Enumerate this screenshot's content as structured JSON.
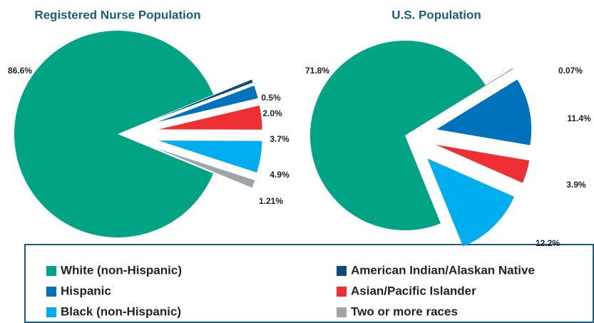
{
  "chart_data": [
    {
      "type": "pie",
      "title": "Registered Nurse Population",
      "categories": [
        "White (non-Hispanic)",
        "American Indian/Alaskan Native",
        "Hispanic",
        "Asian/Pacific Islander",
        "Black (non-Hispanic)",
        "Two or more races"
      ],
      "values": [
        86.6,
        0.5,
        2.0,
        3.7,
        4.9,
        1.21
      ],
      "value_labels": [
        "86.6%",
        "0.5%",
        "2.0%",
        "3.7%",
        "4.9%",
        "1.21%"
      ],
      "colors": [
        "#00a383",
        "#0e4d73",
        "#0072bc",
        "#ed2f34",
        "#00aeef",
        "#9ea4aa"
      ]
    },
    {
      "type": "pie",
      "title": "U.S. Population",
      "categories": [
        "White (non-Hispanic)",
        "American Indian/Alaskan Native",
        "Hispanic",
        "Asian/Pacific Islander",
        "Black (non-Hispanic)"
      ],
      "values": [
        71.8,
        0.07,
        11.4,
        3.9,
        12.2
      ],
      "value_labels": [
        "71.8%",
        "0.07%",
        "11.4%",
        "3.9%",
        "12.2%"
      ],
      "colors": [
        "#00a383",
        "#231f20",
        "#0072bc",
        "#ed2f34",
        "#00aeef"
      ]
    }
  ]
}
